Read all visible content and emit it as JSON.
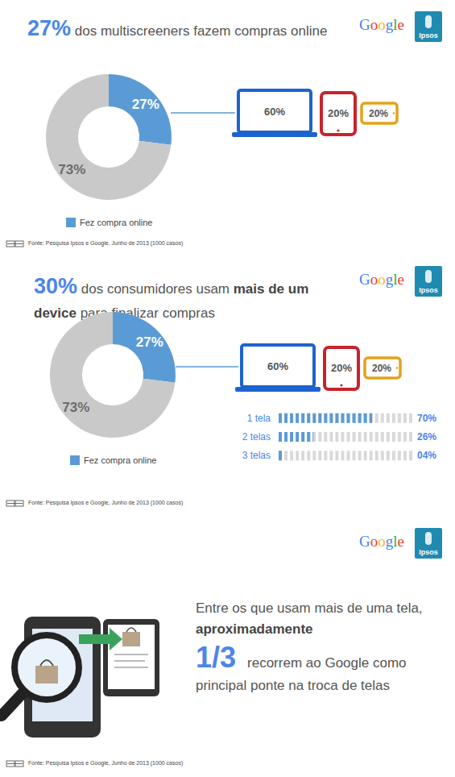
{
  "logos": [
    "Google",
    "Ipsos"
  ],
  "chart_data": [
    {
      "type": "pie",
      "title": [
        "27%",
        " dos multiscreeners fazem compras online"
      ],
      "categories": [
        "Fez compra online",
        null
      ],
      "values": [
        27,
        73
      ],
      "value_labels": [
        "27%",
        "73%"
      ],
      "colors": [
        "#5b9bd5",
        "#c9c9c9"
      ],
      "data_labels": true,
      "legend": "bottom",
      "devices": {
        "values": [
          60,
          20,
          20
        ],
        "value_labels": [
          "60%",
          "20%",
          "20%"
        ],
        "colors": [
          "#1c63d0",
          "#c8232c",
          "#e5a11c"
        ]
      },
      "source": "Fonte: Pesquisa Ipsos e Google, Junho de 2013 (1000 casos)"
    },
    {
      "type": "pie",
      "title": [
        "30%",
        " dos consumidores usam ",
        "mais de um device",
        " para finalizar compras"
      ],
      "categories": [
        "Fez compra online",
        null
      ],
      "values": [
        27,
        73
      ],
      "value_labels": [
        "27%",
        "73%"
      ],
      "colors": [
        "#5b9bd5",
        "#c9c9c9"
      ],
      "data_labels": true,
      "legend": "bottom",
      "devices": {
        "values": [
          60,
          20,
          20
        ],
        "value_labels": [
          "60%",
          "20%",
          "20%"
        ],
        "colors": [
          "#1c63d0",
          "#c8232c",
          "#e5a11c"
        ]
      },
      "source": "Fonte: Pesquisa Ipsos e Google, Junho de 2013 (1000 casos)"
    },
    {
      "type": "bar",
      "orientation": "horizontal",
      "categories": [
        "1 tela",
        "2 telas",
        "3 telas"
      ],
      "values": [
        70,
        26,
        4
      ],
      "value_labels": [
        "70%",
        "26%",
        "04%"
      ],
      "color": "#5b9bd5",
      "xlim": [
        0,
        100
      ],
      "tick_labels": false,
      "data_labels": true
    }
  ],
  "callout": {
    "text": [
      "Entre os que usam mais de uma tela,",
      "aproximadamente",
      "1/3",
      "recorrem ao Google como principal ponte na troca de telas"
    ],
    "source": "Fonte: Pesquisa Ipsos e Google, Junho de 2013 (1000 casos)"
  }
}
